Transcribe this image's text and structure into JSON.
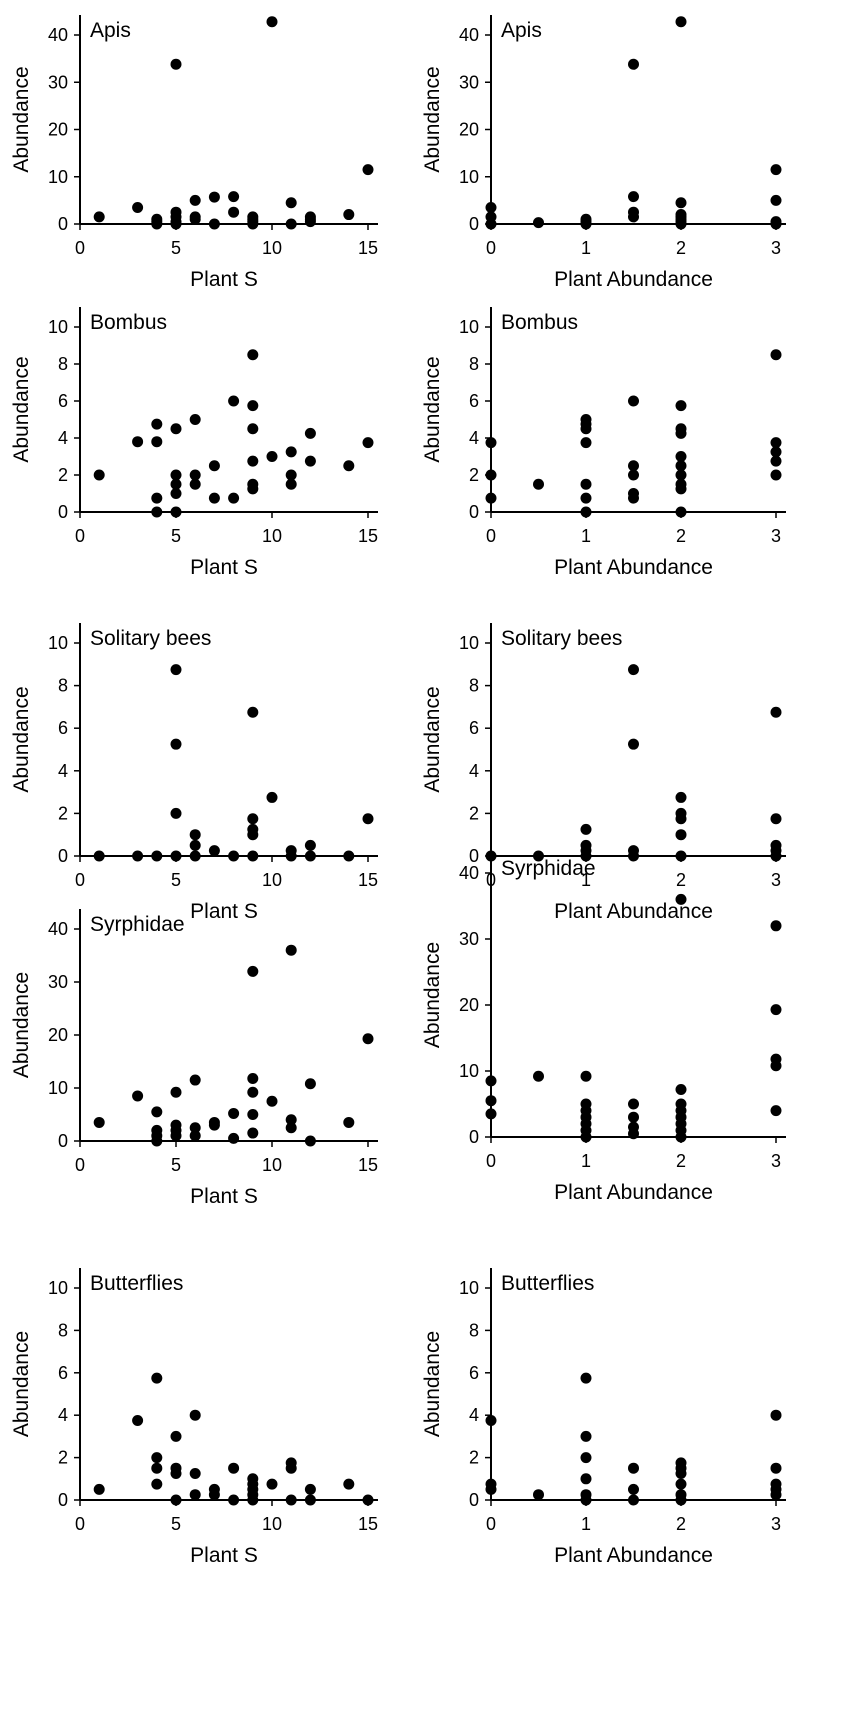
{
  "chart_data": [
    {
      "type": "scatter",
      "title": "Apis",
      "xlabel": "Plant S",
      "ylabel": "Abundance",
      "xlim": [
        0,
        15
      ],
      "ylim": [
        0,
        40
      ],
      "xticks": [
        0,
        5,
        10,
        15
      ],
      "yticks": [
        0,
        10,
        20,
        30,
        40
      ],
      "points": [
        [
          1,
          1.5
        ],
        [
          3,
          3.5
        ],
        [
          4,
          0
        ],
        [
          4,
          0.5
        ],
        [
          4,
          1
        ],
        [
          5,
          0
        ],
        [
          5,
          0.5
        ],
        [
          5,
          1.5
        ],
        [
          5,
          2.5
        ],
        [
          5,
          33.8
        ],
        [
          6,
          1
        ],
        [
          6,
          1.5
        ],
        [
          6,
          5
        ],
        [
          7,
          0
        ],
        [
          7,
          5.7
        ],
        [
          8,
          2.5
        ],
        [
          8,
          5.8
        ],
        [
          9,
          0
        ],
        [
          9,
          0.5
        ],
        [
          9,
          1
        ],
        [
          9,
          1.5
        ],
        [
          10,
          42.8
        ],
        [
          11,
          0
        ],
        [
          11,
          4.5
        ],
        [
          12,
          0.5
        ],
        [
          12,
          1
        ],
        [
          12,
          1.5
        ],
        [
          14,
          2
        ],
        [
          15,
          11.5
        ]
      ]
    },
    {
      "type": "scatter",
      "title": "Apis",
      "xlabel": "Plant Abundance",
      "ylabel": "Abundance",
      "xlim": [
        0,
        3
      ],
      "ylim": [
        0,
        40
      ],
      "xticks": [
        0,
        1,
        2,
        3
      ],
      "yticks": [
        0,
        10,
        20,
        30,
        40
      ],
      "points": [
        [
          0,
          0
        ],
        [
          0,
          1.5
        ],
        [
          0,
          3.5
        ],
        [
          0.5,
          0.3
        ],
        [
          1,
          0
        ],
        [
          1,
          0.5
        ],
        [
          1,
          1
        ],
        [
          1.5,
          1.5
        ],
        [
          1.5,
          2.5
        ],
        [
          1.5,
          5.8
        ],
        [
          1.5,
          33.8
        ],
        [
          2,
          0
        ],
        [
          2,
          0.5
        ],
        [
          2,
          1
        ],
        [
          2,
          1.5
        ],
        [
          2,
          2
        ],
        [
          2,
          4.5
        ],
        [
          2,
          42.8
        ],
        [
          3,
          0
        ],
        [
          3,
          0.5
        ],
        [
          3,
          5
        ],
        [
          3,
          11.5
        ]
      ]
    },
    {
      "type": "scatter",
      "title": "Bombus",
      "xlabel": "Plant S",
      "ylabel": "Abundance",
      "xlim": [
        0,
        15
      ],
      "ylim": [
        0,
        10
      ],
      "xticks": [
        0,
        5,
        10,
        15
      ],
      "yticks": [
        0,
        2,
        4,
        6,
        8,
        10
      ],
      "points": [
        [
          1,
          2
        ],
        [
          3,
          3.8
        ],
        [
          4,
          0
        ],
        [
          4,
          0.75
        ],
        [
          4,
          3.8
        ],
        [
          4,
          4.75
        ],
        [
          5,
          0
        ],
        [
          5,
          1
        ],
        [
          5,
          1.5
        ],
        [
          5,
          2
        ],
        [
          5,
          4.5
        ],
        [
          6,
          1.5
        ],
        [
          6,
          2
        ],
        [
          6,
          5
        ],
        [
          7,
          0.75
        ],
        [
          7,
          2.5
        ],
        [
          8,
          0.75
        ],
        [
          8,
          6
        ],
        [
          9,
          1.25
        ],
        [
          9,
          1.5
        ],
        [
          9,
          2.75
        ],
        [
          9,
          4.5
        ],
        [
          9,
          5.75
        ],
        [
          9,
          8.5
        ],
        [
          10,
          3
        ],
        [
          11,
          1.5
        ],
        [
          11,
          2
        ],
        [
          11,
          3.25
        ],
        [
          12,
          2.75
        ],
        [
          12,
          4.25
        ],
        [
          14,
          2.5
        ],
        [
          15,
          3.75
        ]
      ]
    },
    {
      "type": "scatter",
      "title": "Bombus",
      "xlabel": "Plant Abundance",
      "ylabel": "Abundance",
      "xlim": [
        0,
        3
      ],
      "ylim": [
        0,
        10
      ],
      "xticks": [
        0,
        1,
        2,
        3
      ],
      "yticks": [
        0,
        2,
        4,
        6,
        8,
        10
      ],
      "points": [
        [
          0,
          0.75
        ],
        [
          0,
          2
        ],
        [
          0,
          3.75
        ],
        [
          0.5,
          1.5
        ],
        [
          1,
          0
        ],
        [
          1,
          0.75
        ],
        [
          1,
          1.5
        ],
        [
          1,
          3.75
        ],
        [
          1,
          4.5
        ],
        [
          1,
          4.75
        ],
        [
          1,
          5
        ],
        [
          1.5,
          0.75
        ],
        [
          1.5,
          1
        ],
        [
          1.5,
          2
        ],
        [
          1.5,
          2.5
        ],
        [
          1.5,
          6
        ],
        [
          2,
          0
        ],
        [
          2,
          1.25
        ],
        [
          2,
          1.5
        ],
        [
          2,
          2
        ],
        [
          2,
          2.5
        ],
        [
          2,
          3
        ],
        [
          2,
          4.25
        ],
        [
          2,
          4.5
        ],
        [
          2,
          5.75
        ],
        [
          3,
          2
        ],
        [
          3,
          2.75
        ],
        [
          3,
          3.25
        ],
        [
          3,
          3.75
        ],
        [
          3,
          8.5
        ]
      ]
    },
    {
      "type": "scatter",
      "title": "Solitary bees",
      "xlabel": "Plant S",
      "ylabel": "Abundance",
      "xlim": [
        0,
        15
      ],
      "ylim": [
        0,
        10
      ],
      "xticks": [
        0,
        5,
        10,
        15
      ],
      "yticks": [
        0,
        2,
        4,
        6,
        8,
        10
      ],
      "points": [
        [
          1,
          0
        ],
        [
          3,
          0
        ],
        [
          4,
          0
        ],
        [
          5,
          0
        ],
        [
          5,
          2
        ],
        [
          5,
          5.25
        ],
        [
          5,
          8.75
        ],
        [
          6,
          0
        ],
        [
          6,
          0.5
        ],
        [
          6,
          1
        ],
        [
          7,
          0.25
        ],
        [
          8,
          0
        ],
        [
          9,
          0
        ],
        [
          9,
          1
        ],
        [
          9,
          1.25
        ],
        [
          9,
          1.75
        ],
        [
          9,
          6.75
        ],
        [
          10,
          2.75
        ],
        [
          11,
          0
        ],
        [
          11,
          0.25
        ],
        [
          12,
          0
        ],
        [
          12,
          0.5
        ],
        [
          14,
          0
        ],
        [
          15,
          1.75
        ]
      ]
    },
    {
      "type": "scatter",
      "title": "Solitary bees",
      "xlabel": "Plant Abundance",
      "ylabel": "Abundance",
      "xlim": [
        0,
        3
      ],
      "ylim": [
        0,
        10
      ],
      "xticks": [
        0,
        1,
        2,
        3
      ],
      "yticks": [
        0,
        2,
        4,
        6,
        8,
        10
      ],
      "points": [
        [
          0,
          0
        ],
        [
          0.5,
          0
        ],
        [
          1,
          0
        ],
        [
          1,
          0.25
        ],
        [
          1,
          0.5
        ],
        [
          1,
          1.25
        ],
        [
          1.5,
          0
        ],
        [
          1.5,
          0.25
        ],
        [
          1.5,
          5.25
        ],
        [
          1.5,
          8.75
        ],
        [
          2,
          0
        ],
        [
          2,
          1
        ],
        [
          2,
          1.75
        ],
        [
          2,
          2
        ],
        [
          2,
          2.75
        ],
        [
          3,
          0
        ],
        [
          3,
          0.25
        ],
        [
          3,
          0.5
        ],
        [
          3,
          1.75
        ],
        [
          3,
          6.75
        ]
      ]
    },
    {
      "type": "scatter",
      "title": "Syrphidae",
      "xlabel": "Plant S",
      "ylabel": "Abundance",
      "xlim": [
        0,
        15
      ],
      "ylim": [
        0,
        40
      ],
      "xticks": [
        0,
        5,
        10,
        15
      ],
      "yticks": [
        0,
        10,
        20,
        30,
        40
      ],
      "points": [
        [
          1,
          3.5
        ],
        [
          3,
          8.5
        ],
        [
          4,
          0
        ],
        [
          4,
          1
        ],
        [
          4,
          2
        ],
        [
          4,
          5.5
        ],
        [
          5,
          1
        ],
        [
          5,
          2
        ],
        [
          5,
          3
        ],
        [
          5,
          9.2
        ],
        [
          6,
          1
        ],
        [
          6,
          2.5
        ],
        [
          6,
          11.5
        ],
        [
          7,
          3
        ],
        [
          7,
          3.5
        ],
        [
          8,
          0.5
        ],
        [
          8,
          5.2
        ],
        [
          9,
          1.5
        ],
        [
          9,
          5
        ],
        [
          9,
          9.2
        ],
        [
          9,
          11.8
        ],
        [
          9,
          32
        ],
        [
          10,
          7.5
        ],
        [
          11,
          2.5
        ],
        [
          11,
          4
        ],
        [
          11,
          36
        ],
        [
          12,
          0
        ],
        [
          12,
          10.8
        ],
        [
          14,
          3.5
        ],
        [
          15,
          19.3
        ]
      ]
    },
    {
      "type": "scatter",
      "title": "Syrphidae",
      "xlabel": "Plant Abundance",
      "ylabel": "Abundance",
      "xlim": [
        0,
        3
      ],
      "ylim": [
        0,
        40
      ],
      "xticks": [
        0,
        1,
        2,
        3
      ],
      "yticks": [
        0,
        10,
        20,
        30,
        40
      ],
      "points": [
        [
          0,
          3.5
        ],
        [
          0,
          5.5
        ],
        [
          0,
          8.5
        ],
        [
          0.5,
          9.2
        ],
        [
          1,
          0
        ],
        [
          1,
          1
        ],
        [
          1,
          2
        ],
        [
          1,
          3
        ],
        [
          1,
          4
        ],
        [
          1,
          5
        ],
        [
          1,
          9.2
        ],
        [
          1.5,
          0.5
        ],
        [
          1.5,
          1.5
        ],
        [
          1.5,
          3
        ],
        [
          1.5,
          5
        ],
        [
          2,
          0
        ],
        [
          2,
          1
        ],
        [
          2,
          2
        ],
        [
          2,
          3
        ],
        [
          2,
          4
        ],
        [
          2,
          5
        ],
        [
          2,
          7.2
        ],
        [
          2,
          36
        ],
        [
          3,
          4
        ],
        [
          3,
          10.8
        ],
        [
          3,
          11.8
        ],
        [
          3,
          19.3
        ],
        [
          3,
          32
        ]
      ]
    },
    {
      "type": "scatter",
      "title": "Butterflies",
      "xlabel": "Plant S",
      "ylabel": "Abundance",
      "xlim": [
        0,
        15
      ],
      "ylim": [
        0,
        10
      ],
      "xticks": [
        0,
        5,
        10,
        15
      ],
      "yticks": [
        0,
        2,
        4,
        6,
        8,
        10
      ],
      "points": [
        [
          1,
          0.5
        ],
        [
          3,
          3.75
        ],
        [
          4,
          0.75
        ],
        [
          4,
          1.5
        ],
        [
          4,
          2
        ],
        [
          4,
          5.75
        ],
        [
          5,
          0
        ],
        [
          5,
          1.25
        ],
        [
          5,
          1.5
        ],
        [
          5,
          3
        ],
        [
          6,
          0.25
        ],
        [
          6,
          1.25
        ],
        [
          6,
          4
        ],
        [
          7,
          0.25
        ],
        [
          7,
          0.5
        ],
        [
          8,
          0
        ],
        [
          8,
          1.5
        ],
        [
          9,
          0
        ],
        [
          9,
          0.25
        ],
        [
          9,
          0.5
        ],
        [
          9,
          0.75
        ],
        [
          9,
          1
        ],
        [
          10,
          0.75
        ],
        [
          11,
          0
        ],
        [
          11,
          1.5
        ],
        [
          11,
          1.75
        ],
        [
          12,
          0
        ],
        [
          12,
          0.5
        ],
        [
          14,
          0.75
        ],
        [
          15,
          0
        ]
      ]
    },
    {
      "type": "scatter",
      "title": "Butterflies",
      "xlabel": "Plant Abundance",
      "ylabel": "Abundance",
      "xlim": [
        0,
        3
      ],
      "ylim": [
        0,
        10
      ],
      "xticks": [
        0,
        1,
        2,
        3
      ],
      "yticks": [
        0,
        2,
        4,
        6,
        8,
        10
      ],
      "points": [
        [
          0,
          0.5
        ],
        [
          0,
          0.75
        ],
        [
          0,
          3.75
        ],
        [
          0.5,
          0.25
        ],
        [
          1,
          0
        ],
        [
          1,
          0.25
        ],
        [
          1,
          1
        ],
        [
          1,
          2
        ],
        [
          1,
          3
        ],
        [
          1,
          5.75
        ],
        [
          1.5,
          0
        ],
        [
          1.5,
          0.5
        ],
        [
          1.5,
          1.5
        ],
        [
          2,
          0
        ],
        [
          2,
          0.25
        ],
        [
          2,
          0.75
        ],
        [
          2,
          1.25
        ],
        [
          2,
          1.5
        ],
        [
          2,
          1.75
        ],
        [
          3,
          0.25
        ],
        [
          3,
          0.5
        ],
        [
          3,
          0.75
        ],
        [
          3,
          1.5
        ],
        [
          3,
          4
        ]
      ]
    }
  ]
}
